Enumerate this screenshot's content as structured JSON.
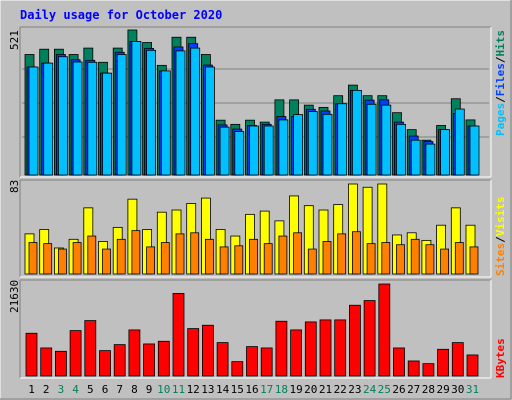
{
  "title": "Daily usage for October 2020",
  "colors": {
    "background": "#c0c0c0",
    "title": "#0000ff",
    "hits": "#00805c",
    "files": "#0040ff",
    "pages": "#00c0ff",
    "visits": "#ffff00",
    "sites": "#ff8000",
    "kbytes": "#ff0000",
    "weekend_day": "#00805c",
    "weekday": "#000000"
  },
  "legend": {
    "hits_files_pages": {
      "pages": "Pages",
      "files": "Files",
      "hits": "Hits",
      "sep": "/"
    },
    "visits_sites": {
      "sites": "Sites",
      "visits": "Visits",
      "sep": "/"
    },
    "kbytes": "KBytes"
  },
  "chart_data": [
    {
      "type": "bar",
      "panel": "hits-files-pages",
      "max_label": "521",
      "ylim": [
        0,
        521
      ],
      "categories": [
        "1",
        "2",
        "3",
        "4",
        "5",
        "6",
        "7",
        "8",
        "9",
        "10",
        "11",
        "12",
        "13",
        "14",
        "15",
        "16",
        "17",
        "18",
        "19",
        "20",
        "21",
        "22",
        "23",
        "24",
        "25",
        "26",
        "27",
        "28",
        "29",
        "30",
        "31"
      ],
      "weekend_days": [
        3,
        4,
        10,
        11,
        17,
        18,
        24,
        25,
        31
      ],
      "series": [
        {
          "name": "Hits",
          "values": [
            433,
            452,
            452,
            433,
            456,
            405,
            456,
            521,
            476,
            394,
            495,
            495,
            433,
            197,
            182,
            197,
            190,
            270,
            270,
            251,
            243,
            285,
            323,
            285,
            285,
            224,
            163,
            125,
            178,
            274,
            198
          ]
        },
        {
          "name": "Files",
          "values": [
            388,
            402,
            433,
            414,
            412,
            366,
            441,
            480,
            455,
            374,
            460,
            472,
            395,
            180,
            165,
            178,
            182,
            210,
            210,
            236,
            230,
            256,
            304,
            269,
            270,
            190,
            140,
            120,
            163,
            221,
            176
          ]
        },
        {
          "name": "Pages",
          "values": [
            388,
            402,
            425,
            406,
            405,
            366,
            433,
            480,
            448,
            374,
            446,
            456,
            388,
            172,
            156,
            176,
            176,
            198,
            217,
            228,
            218,
            256,
            304,
            254,
            251,
            182,
            125,
            111,
            163,
            237,
            176
          ]
        }
      ]
    },
    {
      "type": "bar",
      "panel": "visits-sites",
      "max_label": "83",
      "ylim": [
        0,
        83
      ],
      "categories": [
        "1",
        "2",
        "3",
        "4",
        "5",
        "6",
        "7",
        "8",
        "9",
        "10",
        "11",
        "12",
        "13",
        "14",
        "15",
        "16",
        "17",
        "18",
        "19",
        "20",
        "21",
        "22",
        "23",
        "24",
        "25",
        "26",
        "27",
        "28",
        "29",
        "30",
        "31"
      ],
      "series": [
        {
          "name": "Visits",
          "values": [
            37,
            41,
            24,
            32,
            61,
            30,
            43,
            69,
            41,
            57,
            59,
            65,
            70,
            41,
            35,
            55,
            58,
            49,
            72,
            63,
            59,
            64,
            83,
            80,
            83,
            36,
            38,
            31,
            45,
            61,
            45
          ]
        },
        {
          "name": "Sites",
          "values": [
            29,
            28,
            23,
            29,
            35,
            23,
            32,
            40,
            25,
            29,
            37,
            38,
            32,
            25,
            26,
            32,
            28,
            35,
            38,
            23,
            30,
            37,
            39,
            28,
            29,
            27,
            32,
            27,
            23,
            29,
            25
          ]
        }
      ]
    },
    {
      "type": "bar",
      "panel": "kbytes",
      "max_label": "21630",
      "ylim": [
        0,
        21630
      ],
      "categories": [
        "1",
        "2",
        "3",
        "4",
        "5",
        "6",
        "7",
        "8",
        "9",
        "10",
        "11",
        "12",
        "13",
        "14",
        "15",
        "16",
        "17",
        "18",
        "19",
        "20",
        "21",
        "22",
        "23",
        "24",
        "25",
        "26",
        "27",
        "28",
        "29",
        "30",
        "31"
      ],
      "series": [
        {
          "name": "KBytes",
          "values": [
            10050,
            6595,
            5811,
            10677,
            13027,
            5968,
            7380,
            10834,
            7538,
            8166,
            19416,
            11147,
            11932,
            7851,
            3378,
            6909,
            6595,
            12876,
            10834,
            12719,
            13190,
            13190,
            16638,
            17736,
            21630,
            6595,
            3535,
            2908,
            6281,
            7851,
            4948
          ]
        }
      ]
    }
  ]
}
